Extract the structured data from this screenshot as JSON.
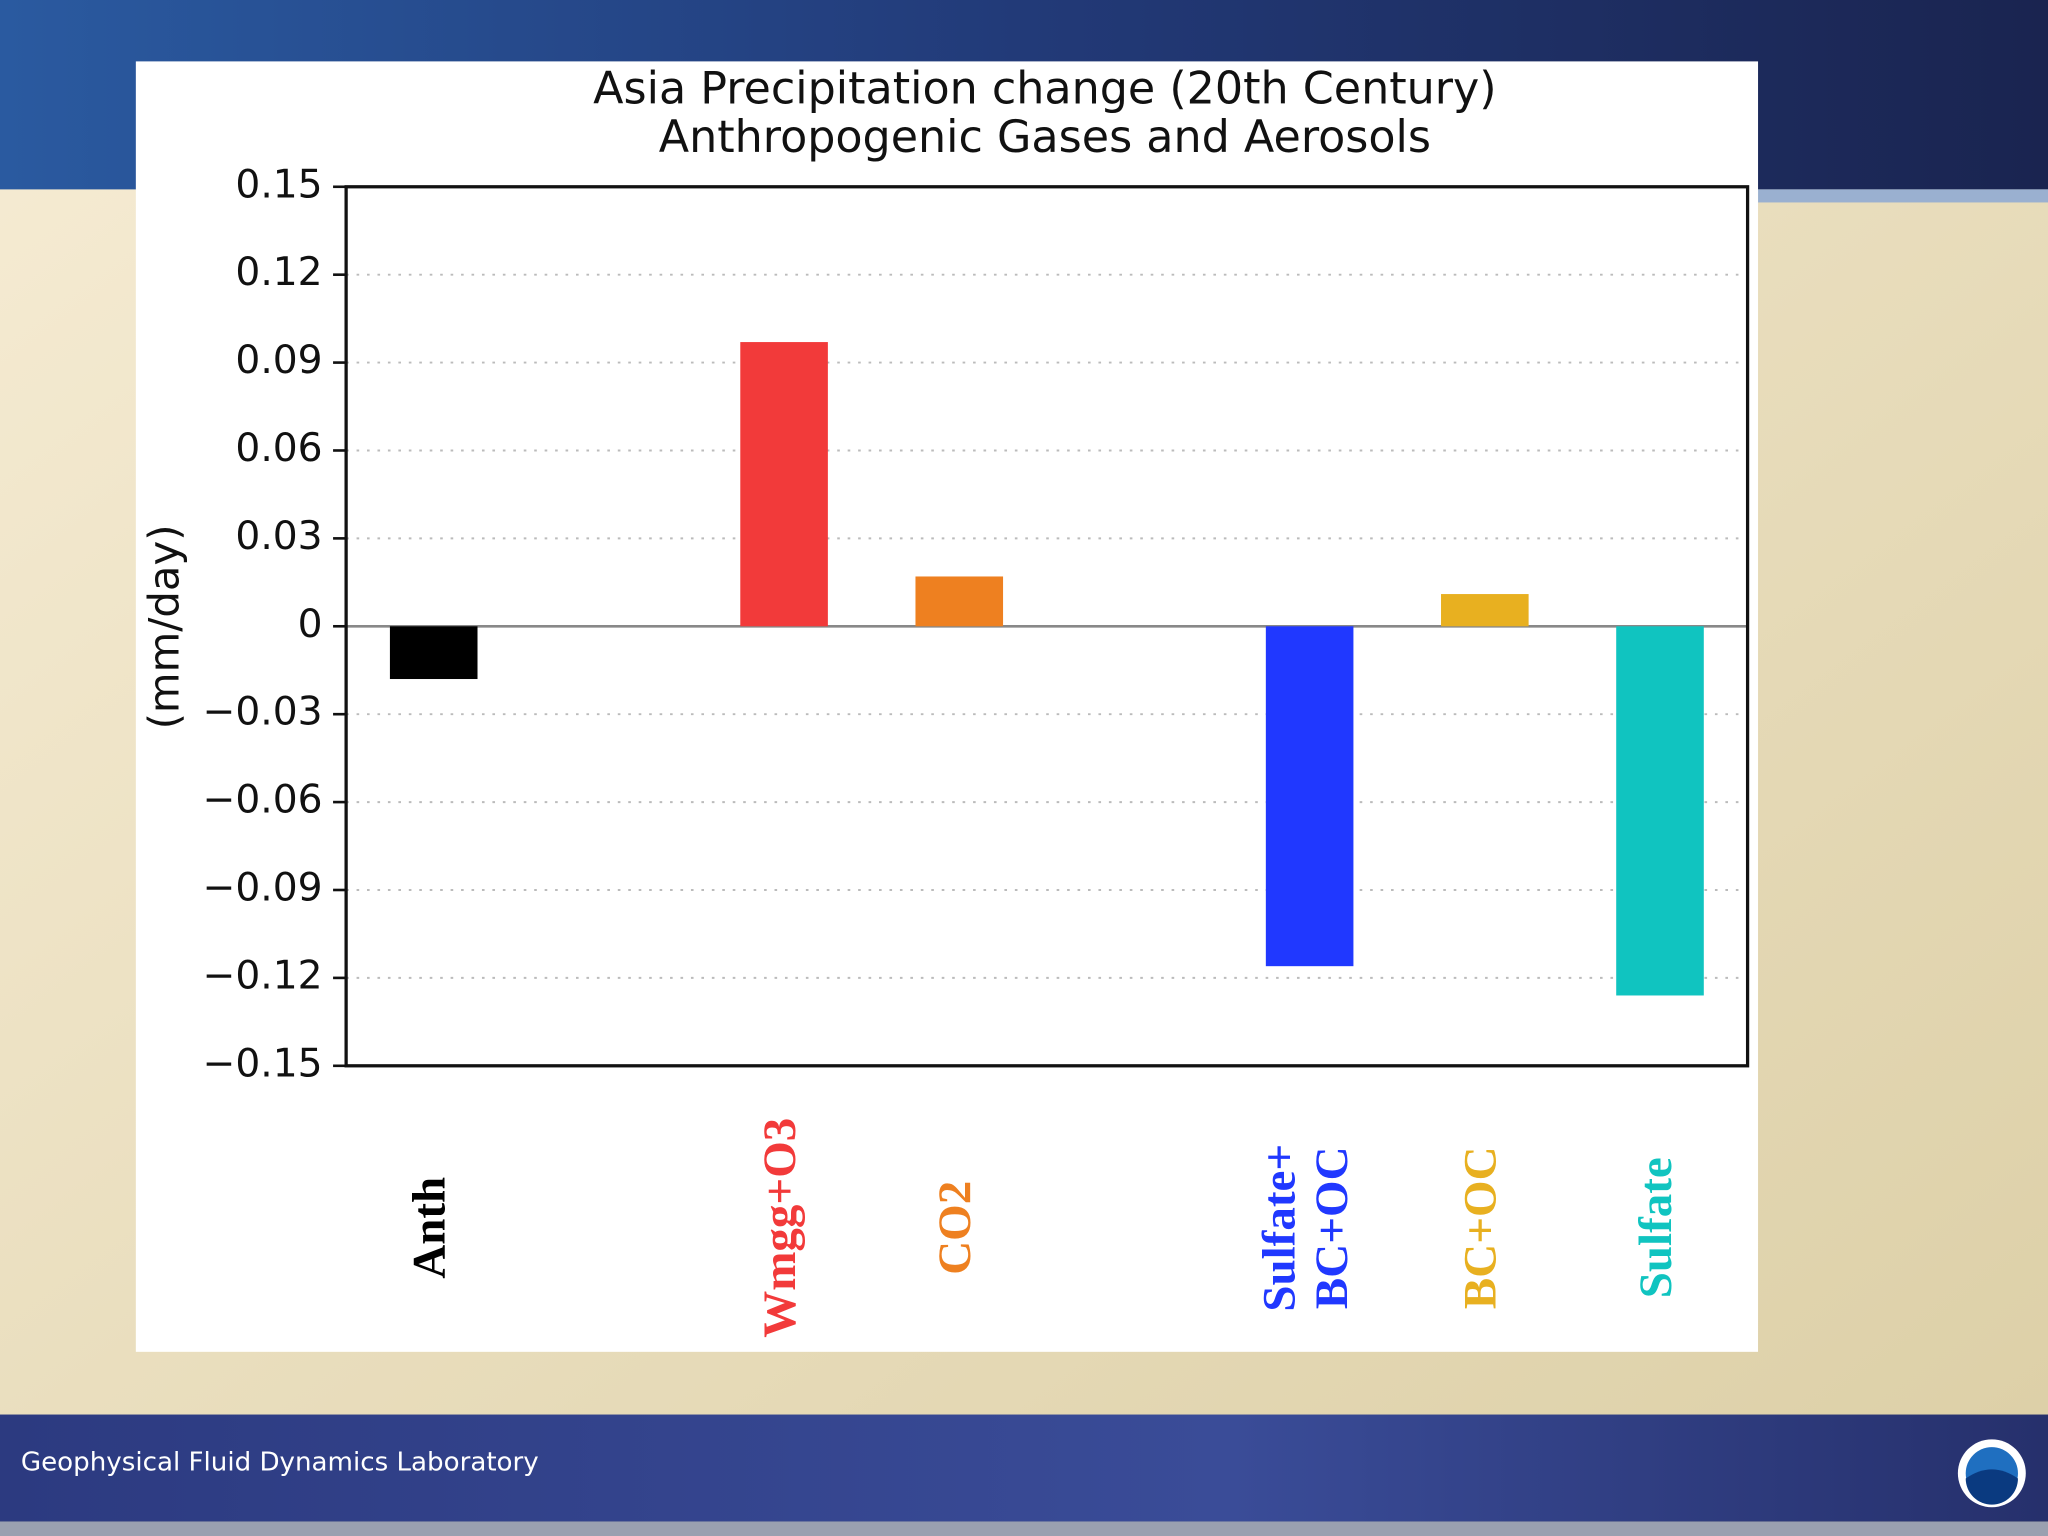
{
  "chart_data": {
    "type": "bar",
    "title": "Asia Precipitation change (20th Century)",
    "subtitle": "Anthropogenic Gases and Aerosols",
    "y_label": "(mm/day)",
    "categories": [
      "Anth",
      null,
      "Wmgg+O3",
      "CO2",
      null,
      "Sulfate+\nBC+OC",
      "BC+OC",
      "Sulfate"
    ],
    "values": [
      -0.018,
      null,
      0.097,
      0.017,
      null,
      -0.116,
      0.011,
      -0.126
    ],
    "colors": [
      "#000000",
      null,
      "#f23a3a",
      "#ee8020",
      null,
      "#2038ff",
      "#e8b020",
      "#10c4c0"
    ],
    "ylim": [
      -0.15,
      0.15
    ],
    "yticks": [
      0.15,
      0.12,
      0.09,
      0.06,
      0.03,
      0,
      {
        "value": -0.03,
        "label": "−0.03"
      },
      {
        "value": -0.06,
        "label": "−0.06"
      },
      {
        "value": -0.09,
        "label": "−0.09"
      },
      {
        "value": -0.12,
        "label": "−0.12"
      },
      {
        "value": -0.15,
        "label": "−0.15"
      }
    ],
    "grid": true
  },
  "footer": "Geophysical Fluid Dynamics Laboratory"
}
